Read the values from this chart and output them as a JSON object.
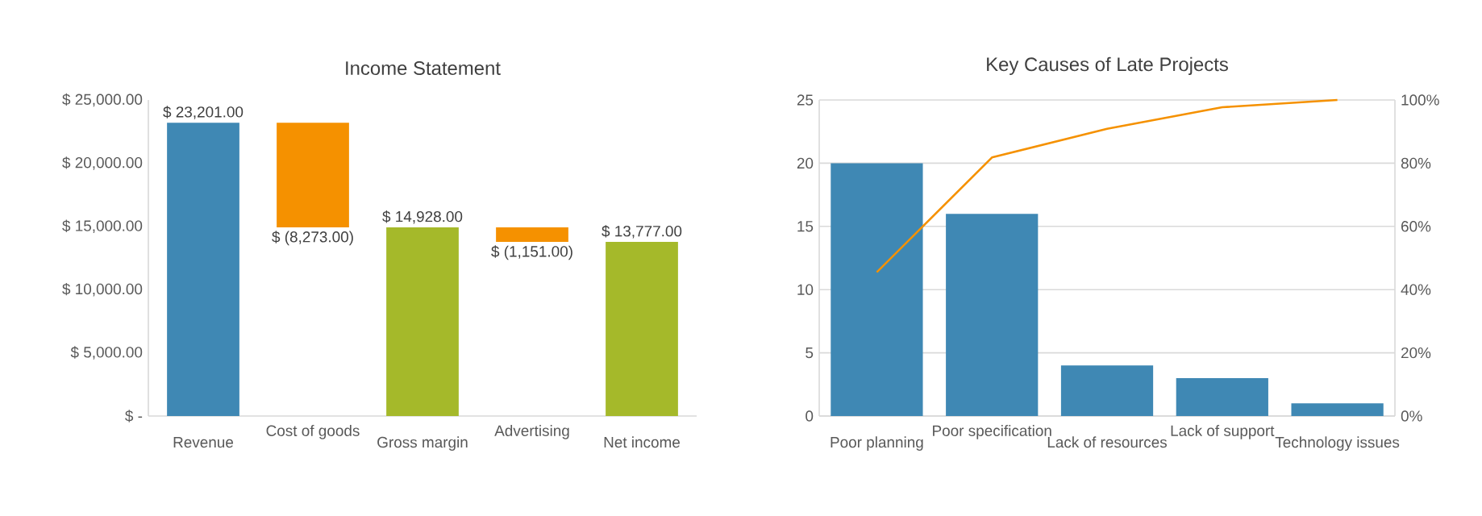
{
  "chart_data": [
    {
      "type": "bar",
      "title": "Income Statement",
      "categories": [
        "Revenue",
        "Cost of goods",
        "Gross margin",
        "Advertising",
        "Net income"
      ],
      "values": [
        23201,
        -8273,
        14928,
        -1151,
        13777
      ],
      "base": [
        0,
        23201,
        0,
        14928,
        0
      ],
      "colors": [
        "#3f88b4",
        "#f59100",
        "#a5b92a",
        "#f59100",
        "#a5b92a"
      ],
      "value_labels": [
        "$ 23,201.00",
        "$ (8,273.00)",
        "$ 14,928.00",
        "$ (1,151.00)",
        "$ 13,777.00"
      ],
      "ylim": [
        0,
        25000
      ],
      "yticks": [
        {
          "value": 0,
          "label": "$ -"
        },
        {
          "value": 5000,
          "label": "$ 5,000.00"
        },
        {
          "value": 10000,
          "label": "$ 10,000.00"
        },
        {
          "value": 15000,
          "label": "$ 15,000.00"
        },
        {
          "value": 20000,
          "label": "$ 20,000.00"
        },
        {
          "value": 25000,
          "label": "$ 25,000.00"
        }
      ]
    },
    {
      "type": "bar",
      "title": "Key Causes of Late Projects",
      "categories": [
        "Poor planning",
        "Poor specification",
        "Lack of resources",
        "Lack of support",
        "Technology issues"
      ],
      "series": [
        {
          "color": "#3f88b4",
          "values": [
            20,
            16,
            4,
            3,
            1
          ]
        },
        {
          "type": "line",
          "axis": "y2",
          "color": "#f59100",
          "values": [
            45.5,
            81.8,
            90.9,
            97.7,
            100
          ]
        }
      ],
      "ylim": [
        0,
        25
      ],
      "yticks": [
        0,
        5,
        10,
        15,
        20,
        25
      ],
      "y2lim": [
        0,
        100
      ],
      "y2ticks": [
        {
          "value": 0,
          "label": "0%"
        },
        {
          "value": 20,
          "label": "20%"
        },
        {
          "value": 40,
          "label": "40%"
        },
        {
          "value": 60,
          "label": "60%"
        },
        {
          "value": 80,
          "label": "80%"
        },
        {
          "value": 100,
          "label": "100%"
        }
      ],
      "grid": "y"
    }
  ]
}
